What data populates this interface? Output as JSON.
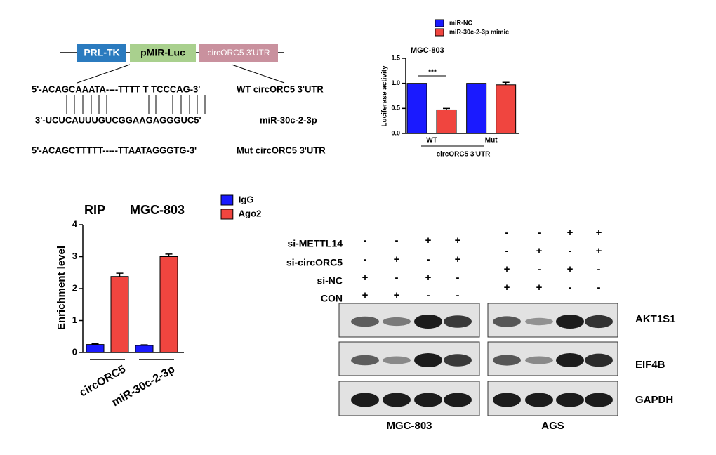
{
  "construct": {
    "boxes": [
      "PRL-TK",
      "pMIR-Luc",
      "circORC5 3'UTR"
    ],
    "wt_seq": "5'-ACAGCAAATA----TTTT T TCCCAG-3'",
    "wt_label": "WT circORC5 3'UTR",
    "mir_seq": "3'-UCUCAUUUGUCGGAAGAGGGUC5'",
    "mir_label": "miR-30c-2-3p",
    "mut_seq": "5'-ACAGCTTTTT-----TTAATAGGGTG-3'",
    "mut_label": "Mut circORC5 3'UTR"
  },
  "chart_data": [
    {
      "type": "bar",
      "title": "MGC-803",
      "y_label": "Luciferase activity",
      "x_label": "circORC5 3'UTR",
      "categories": [
        "WT",
        "Mut"
      ],
      "series": [
        {
          "name": "miR-NC",
          "color": "#1a1aff",
          "values": [
            1.0,
            1.0
          ]
        },
        {
          "name": "miR-30c-2-3p mimic",
          "color": "#f0453f",
          "values": [
            0.47,
            0.97
          ],
          "errors": [
            0.03,
            0.05
          ]
        }
      ],
      "ylim": [
        0,
        1.5
      ],
      "yticks": [
        {
          "value": 0,
          "label": "0.0"
        },
        0.5,
        {
          "value": 1,
          "label": "1.0"
        },
        1.5
      ],
      "annotation": "***",
      "legend": "top"
    },
    {
      "type": "bar",
      "title": "RIP",
      "subtitle": "MGC-803",
      "y_label": "Enrichment level",
      "categories": [
        "circORC5",
        "miR-30c-2-3p"
      ],
      "series": [
        {
          "name": "IgG",
          "color": "#1a1aff",
          "values": [
            0.25,
            0.22
          ],
          "errors": [
            0.02,
            0.02
          ]
        },
        {
          "name": "Ago2",
          "color": "#f0453f",
          "values": [
            2.38,
            3.0
          ],
          "errors": [
            0.1,
            0.08
          ]
        }
      ],
      "ylim": [
        0,
        4
      ],
      "yticks": [
        0,
        1,
        2,
        3,
        4
      ],
      "legend": "upper right"
    }
  ],
  "blot": {
    "row_labels": [
      "si-METTL14",
      "si-circORC5",
      "si-NC",
      "CON"
    ],
    "groups": [
      {
        "name": "MGC-803",
        "signs": [
          [
            "-",
            "-",
            "+",
            "+"
          ],
          [
            "-",
            "+",
            "-",
            "+"
          ],
          [
            "+",
            "-",
            "+",
            "-"
          ],
          [
            "+",
            "+",
            "-",
            "-"
          ]
        ]
      },
      {
        "name": "AGS",
        "signs": [
          [
            "-",
            "-",
            "+",
            "+"
          ],
          [
            "-",
            "+",
            "-",
            "+"
          ],
          [
            "+",
            "-",
            "+",
            "-"
          ],
          [
            "+",
            "+",
            "-",
            "-"
          ]
        ]
      }
    ],
    "proteins": [
      "AKT1S1",
      "EIF4B",
      "GAPDH"
    ]
  }
}
